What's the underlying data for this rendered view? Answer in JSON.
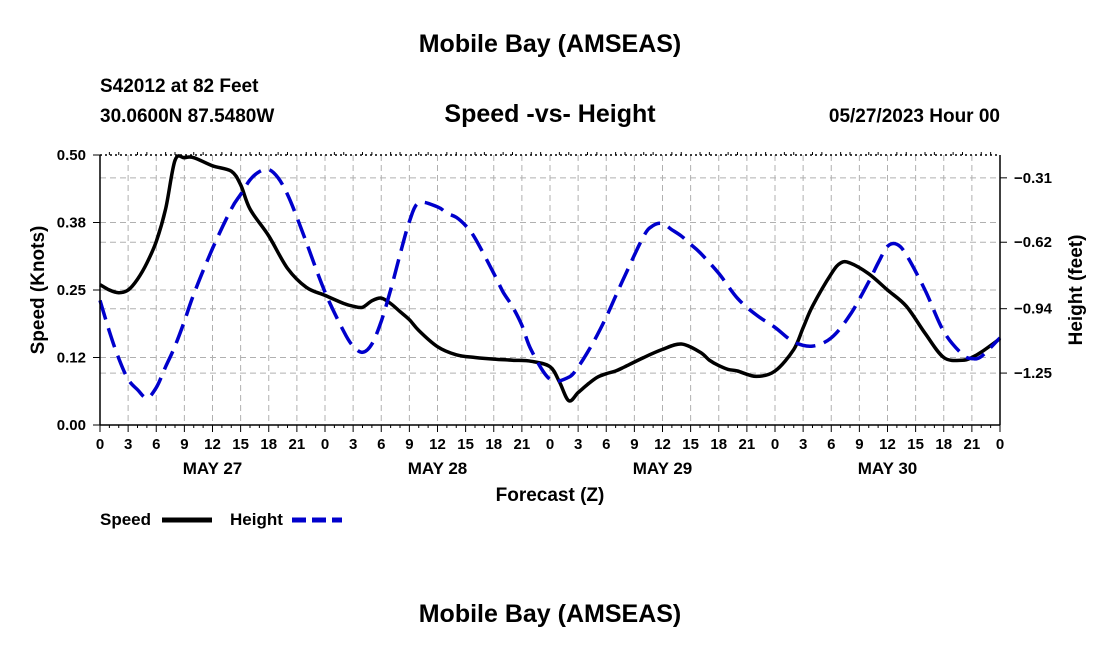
{
  "header": {
    "title": "Mobile Bay (AMSEAS)",
    "station": "S42012 at 82 Feet",
    "coords": "30.0600N  87.5480W",
    "subtitle": "Speed -vs- Height",
    "datetime": "05/27/2023 Hour 00"
  },
  "footer": {
    "title": "Mobile Bay (AMSEAS)"
  },
  "chart_data": {
    "type": "line",
    "title": "Speed -vs- Height",
    "xlabel": "Forecast (Z)",
    "ylabel": "Speed (Knots)",
    "y2label": "Height (feet)",
    "xlim": [
      0,
      96
    ],
    "ylim": [
      0,
      0.5
    ],
    "y2lim": [
      -1.5,
      -0.2
    ],
    "x_ticks": [
      0,
      3,
      6,
      9,
      12,
      15,
      18,
      21,
      24,
      27,
      30,
      33,
      36,
      39,
      42,
      45,
      48,
      51,
      54,
      57,
      60,
      63,
      66,
      69,
      72,
      75,
      78,
      81,
      84,
      87,
      90,
      93,
      96
    ],
    "x_tick_labels": [
      "0",
      "3",
      "6",
      "9",
      "12",
      "15",
      "18",
      "21",
      "0",
      "3",
      "6",
      "9",
      "12",
      "15",
      "18",
      "21",
      "0",
      "3",
      "6",
      "9",
      "12",
      "15",
      "18",
      "21",
      "0",
      "3",
      "6",
      "9",
      "12",
      "15",
      "18",
      "21",
      "0"
    ],
    "day_labels": [
      {
        "x": 12,
        "label": "MAY 27"
      },
      {
        "x": 36,
        "label": "MAY 28"
      },
      {
        "x": 60,
        "label": "MAY 29"
      },
      {
        "x": 84,
        "label": "MAY 30"
      }
    ],
    "y_ticks": [
      0,
      0.125,
      0.25,
      0.375,
      0.5
    ],
    "y_tick_labels": [
      "0.00",
      "0.12",
      "0.25",
      "0.38",
      "0.50"
    ],
    "y2_ticks": [
      -1.25,
      -0.94,
      -0.62,
      -0.31
    ],
    "y2_tick_labels": [
      "−1.25",
      "−0.94",
      "−0.62",
      "−0.31"
    ],
    "grid": true,
    "series": [
      {
        "name": "Speed",
        "axis": "left",
        "color": "#000000",
        "dash": "solid",
        "x": [
          0,
          1,
          2,
          3,
          4,
          5,
          6,
          7,
          8,
          9,
          10,
          12,
          14,
          15,
          16,
          18,
          20,
          22,
          24,
          26,
          27,
          28,
          29,
          30,
          31,
          32,
          33,
          34,
          36,
          38,
          40,
          42,
          44,
          46,
          48,
          49,
          50,
          51,
          52,
          53,
          54,
          55,
          56,
          58,
          60,
          62,
          64,
          65,
          66,
          67,
          68,
          70,
          72,
          74,
          75,
          76,
          78,
          79,
          80,
          82,
          84,
          86,
          88,
          90,
          92,
          93,
          94,
          96
        ],
        "y": [
          0.26,
          0.25,
          0.245,
          0.25,
          0.27,
          0.3,
          0.34,
          0.4,
          0.49,
          0.495,
          0.495,
          0.48,
          0.47,
          0.445,
          0.4,
          0.35,
          0.29,
          0.255,
          0.24,
          0.225,
          0.22,
          0.218,
          0.23,
          0.235,
          0.225,
          0.21,
          0.195,
          0.175,
          0.145,
          0.13,
          0.125,
          0.122,
          0.12,
          0.118,
          0.108,
          0.08,
          0.045,
          0.06,
          0.075,
          0.088,
          0.095,
          0.1,
          0.108,
          0.125,
          0.14,
          0.15,
          0.135,
          0.12,
          0.11,
          0.103,
          0.1,
          0.09,
          0.1,
          0.14,
          0.18,
          0.22,
          0.28,
          0.3,
          0.3,
          0.28,
          0.25,
          0.22,
          0.17,
          0.125,
          0.12,
          0.125,
          0.135,
          0.16
        ]
      },
      {
        "name": "Height",
        "axis": "right",
        "color": "#0000cc",
        "dash": "dashed",
        "x": [
          0,
          1,
          2,
          3,
          4,
          5,
          6,
          7,
          8,
          9,
          10,
          12,
          14,
          15,
          16,
          17,
          18,
          19,
          20,
          21,
          22,
          24,
          26,
          27,
          28,
          29,
          30,
          31,
          32,
          33,
          34,
          36,
          37,
          38,
          39,
          40,
          42,
          43,
          44,
          45,
          46,
          48,
          50,
          51,
          52,
          53,
          54,
          55,
          56,
          58,
          59,
          60,
          61,
          62,
          63,
          64,
          66,
          68,
          70,
          72,
          74,
          76,
          78,
          80,
          82,
          83,
          84,
          85,
          86,
          88,
          90,
          92,
          93,
          94,
          96
        ],
        "y": [
          -0.9,
          -1.05,
          -1.18,
          -1.28,
          -1.33,
          -1.37,
          -1.32,
          -1.22,
          -1.12,
          -1.0,
          -0.87,
          -0.65,
          -0.46,
          -0.39,
          -0.32,
          -0.28,
          -0.27,
          -0.31,
          -0.39,
          -0.5,
          -0.62,
          -0.86,
          -1.05,
          -1.12,
          -1.15,
          -1.11,
          -1.0,
          -0.85,
          -0.68,
          -0.52,
          -0.43,
          -0.45,
          -0.48,
          -0.5,
          -0.54,
          -0.6,
          -0.77,
          -0.86,
          -0.93,
          -1.02,
          -1.14,
          -1.28,
          -1.27,
          -1.22,
          -1.15,
          -1.07,
          -0.98,
          -0.88,
          -0.78,
          -0.59,
          -0.54,
          -0.53,
          -0.56,
          -0.59,
          -0.63,
          -0.67,
          -0.77,
          -0.89,
          -0.97,
          -1.03,
          -1.1,
          -1.12,
          -1.08,
          -0.97,
          -0.81,
          -0.72,
          -0.64,
          -0.63,
          -0.68,
          -0.85,
          -1.05,
          -1.16,
          -1.18,
          -1.17,
          -1.08
        ]
      }
    ],
    "legend": {
      "position": "bottom-left",
      "entries": [
        "Speed",
        "Height"
      ]
    }
  }
}
